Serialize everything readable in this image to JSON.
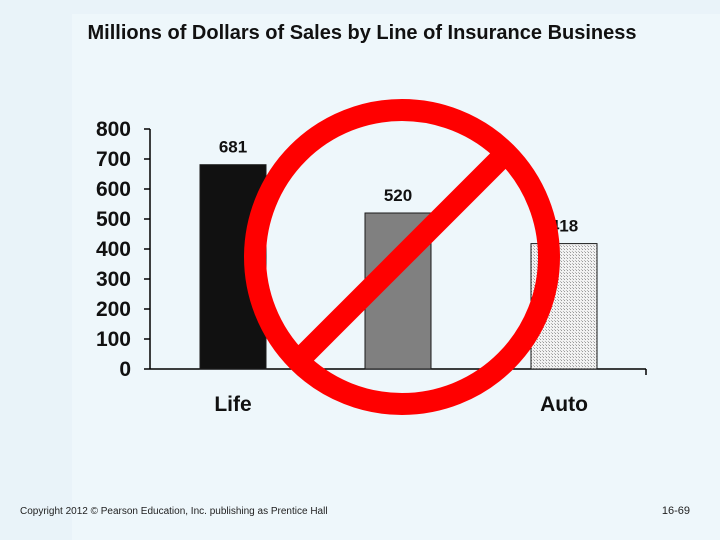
{
  "slide": {
    "copyright": "Copyright 2012 © Pearson Education, Inc. publishing as Prentice Hall",
    "page_number": "16-69"
  },
  "overlay": {
    "icon": "prohibition-sign",
    "color": "#ff0000"
  },
  "chart_data": {
    "type": "bar",
    "title": "Millions of Dollars of Sales by Line of Insurance Business",
    "categories": [
      "Life",
      "",
      "Auto"
    ],
    "values": [
      681,
      520,
      418
    ],
    "value_labels": [
      "681",
      "520",
      "418"
    ],
    "bar_fills": [
      "#111111",
      "#808080",
      "pattern-checker"
    ],
    "ylim": [
      0,
      800
    ],
    "yticks": [
      0,
      100,
      200,
      300,
      400,
      500,
      600,
      700,
      800
    ],
    "xlabel": "",
    "ylabel": "",
    "grid": false,
    "legend": "none"
  }
}
